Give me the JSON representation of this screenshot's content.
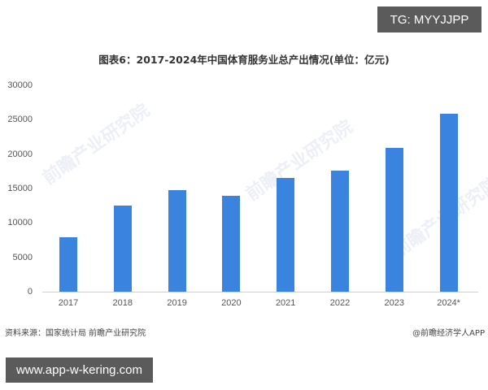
{
  "overlay": {
    "tg_label": "TG: MYYJJPP",
    "url_label": "www.app-w-kering.com"
  },
  "footer": {
    "source": "资料来源：国家统计局 前瞻产业研究院",
    "credit": "@前瞻经济学人APP"
  },
  "watermark_text": "前瞻产业研究院",
  "chart_data": {
    "type": "bar",
    "title": "图表6：2017-2024年中国体育服务业总产出情况(单位：亿元)",
    "xlabel": "",
    "ylabel": "",
    "categories": [
      "2017",
      "2018",
      "2019",
      "2020",
      "2021",
      "2022",
      "2023",
      "2024*"
    ],
    "values": [
      7900,
      12550,
      14750,
      13950,
      16500,
      17650,
      20900,
      25900
    ],
    "ylim": [
      0,
      30000
    ],
    "yticks": [
      "0",
      "5000",
      "10000",
      "15000",
      "20000",
      "25000",
      "30000"
    ],
    "grid": false,
    "legend": "none",
    "bar_color": "#3a84e0"
  }
}
